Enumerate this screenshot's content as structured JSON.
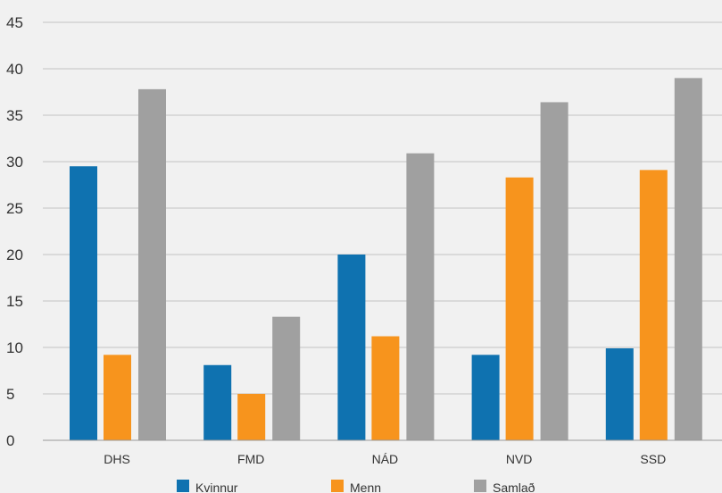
{
  "chart_data": {
    "type": "bar",
    "categories": [
      "DHS",
      "FMD",
      "NÁD",
      "NVD",
      "SSD"
    ],
    "series": [
      {
        "name": "Kvinnur",
        "color": "#0f72b0",
        "values": [
          29.5,
          8.1,
          20.0,
          9.2,
          9.9
        ]
      },
      {
        "name": "Menn",
        "color": "#f7941d",
        "values": [
          9.2,
          5.0,
          11.2,
          28.3,
          29.1
        ]
      },
      {
        "name": "Samlað",
        "color": "#a0a0a0",
        "values": [
          37.8,
          13.3,
          30.9,
          36.4,
          39.0
        ]
      }
    ],
    "ylim": [
      0,
      45
    ],
    "yticks": [
      "0",
      "5",
      "10",
      "15",
      "20",
      "25",
      "30",
      "35",
      "40",
      "45"
    ],
    "grid": true,
    "legend_position": "bottom"
  }
}
